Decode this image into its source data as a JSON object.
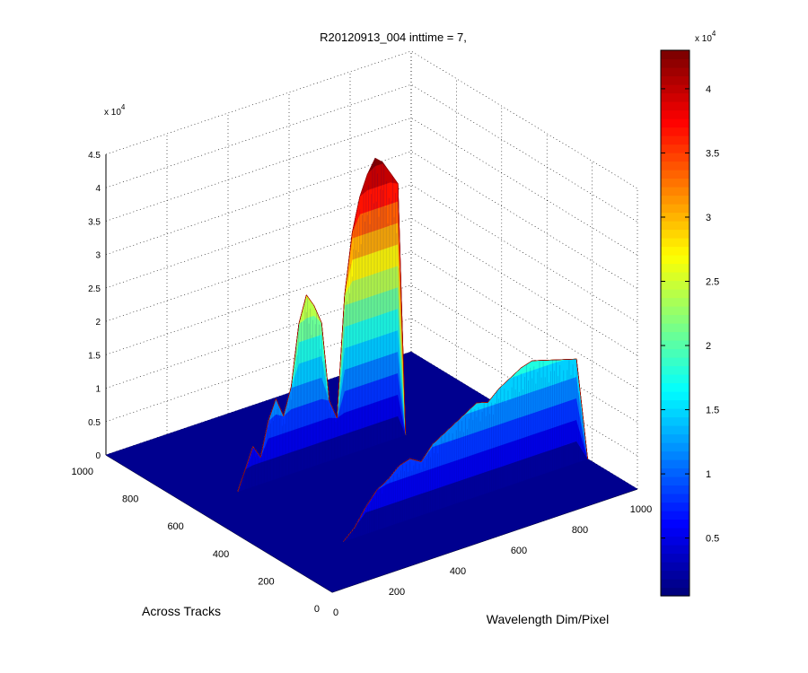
{
  "chart_data": {
    "type": "surface",
    "title": "R20120913_004 inttime = 7,",
    "xlabel": "Wavelength Dim/Pixel",
    "ylabel": "Across Tracks",
    "zlabel": "",
    "xlim": [
      0,
      1000
    ],
    "ylim": [
      0,
      1000
    ],
    "zlim": [
      0,
      45000
    ],
    "x_ticks": [
      "0",
      "200",
      "400",
      "600",
      "800",
      "1000"
    ],
    "y_ticks": [
      "0",
      "200",
      "400",
      "600",
      "800",
      "1000"
    ],
    "z_ticks": [
      "0",
      "0.5",
      "1",
      "1.5",
      "2",
      "2.5",
      "3",
      "3.5",
      "4",
      "4.5"
    ],
    "z_exponent": "x 10",
    "z_exponent_power": "4",
    "grid": true,
    "colormap": "jet",
    "colorbar": {
      "position": "right",
      "range": [
        500,
        43000
      ],
      "ticks": [
        "0.5",
        "1",
        "1.5",
        "2",
        "2.5",
        "3",
        "3.5",
        "4"
      ],
      "exponent": "x 10",
      "exponent_power": "4"
    },
    "ridges": [
      {
        "across_track": 620,
        "x_start": 150,
        "x_end": 700,
        "peak": 43000,
        "profile": [
          0,
          3000,
          6000,
          4000,
          9000,
          12000,
          9000,
          13000,
          22000,
          26000,
          24000,
          21000,
          9000,
          6000,
          24000,
          33000,
          38000,
          41000,
          43000,
          42000,
          40000,
          38000,
          0
        ]
      },
      {
        "across_track": 220,
        "x_start": 200,
        "x_end": 1000,
        "peak": 17500,
        "profile": [
          0,
          1500,
          4000,
          6000,
          7000,
          8500,
          9000,
          8000,
          10000,
          11000,
          12000,
          13000,
          14000,
          13500,
          15000,
          16000,
          17000,
          17500,
          17000,
          16500,
          16000,
          15500,
          0
        ]
      }
    ]
  }
}
